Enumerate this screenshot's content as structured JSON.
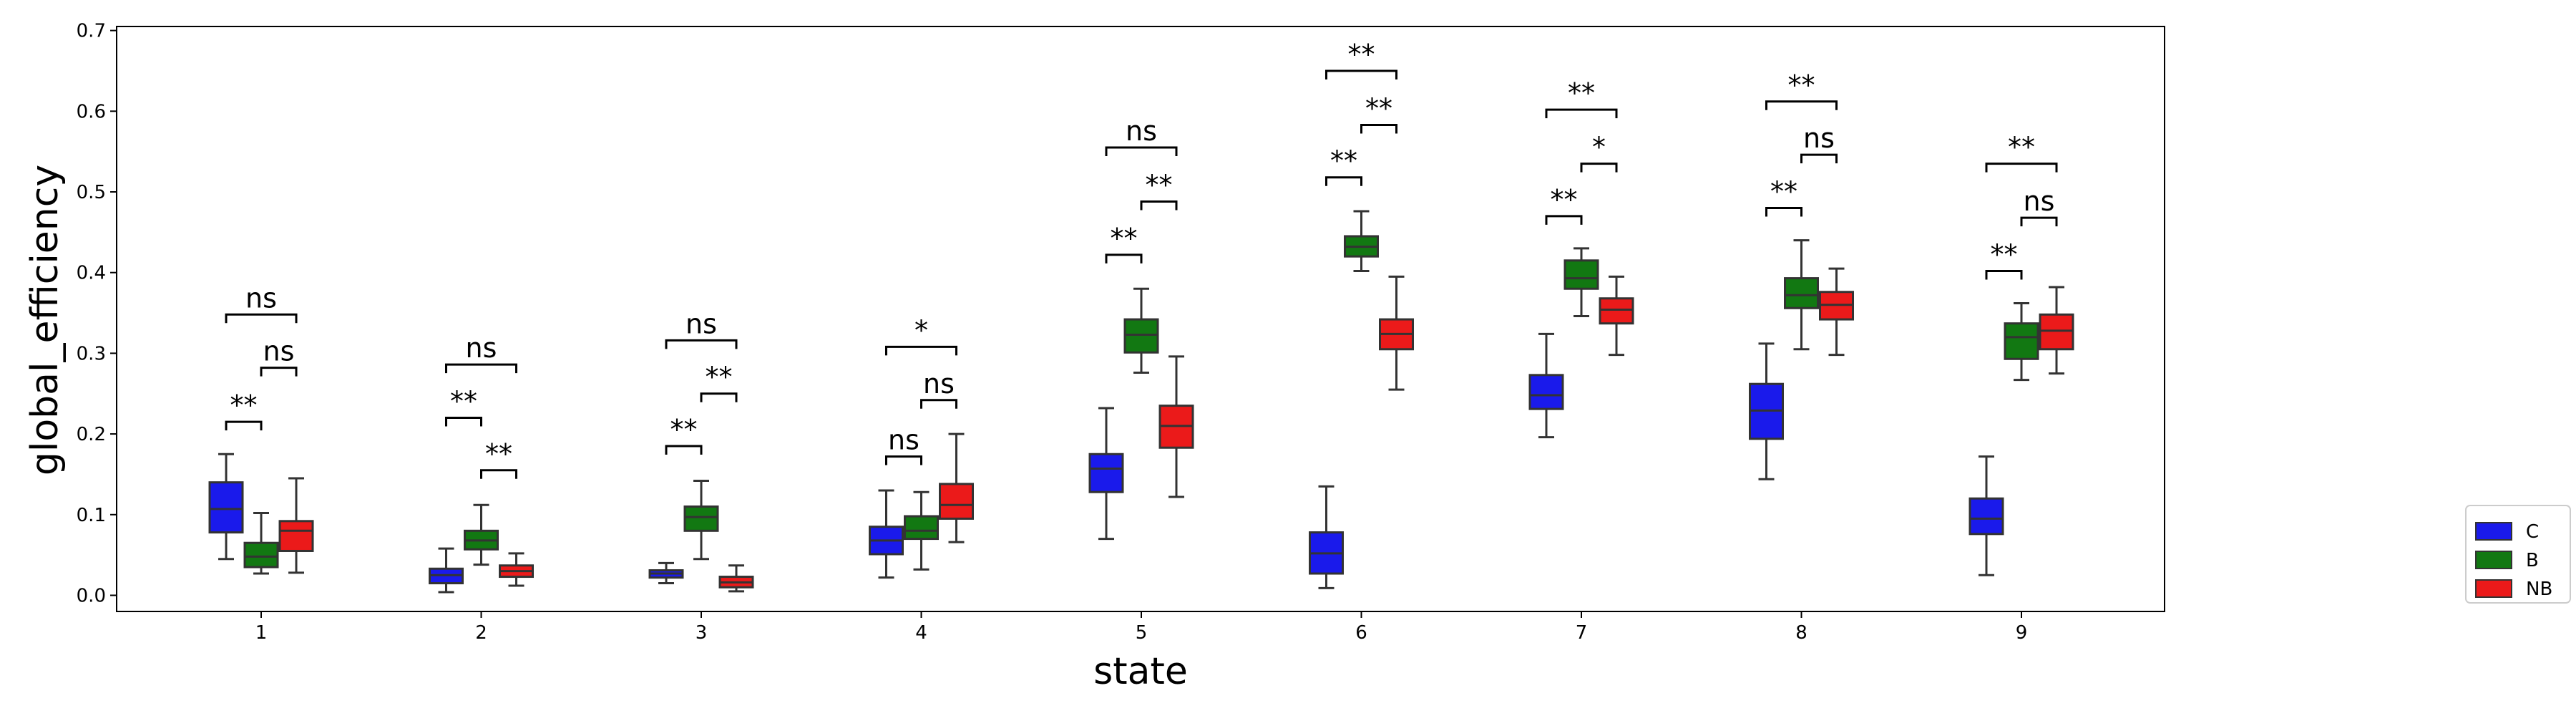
{
  "chart_data": {
    "type": "box",
    "xlabel": "state",
    "ylabel": "global_efficiency",
    "ylim": [
      -0.02,
      0.705
    ],
    "yticks": [
      "0.0",
      "0.1",
      "0.2",
      "0.3",
      "0.4",
      "0.5",
      "0.6",
      "0.7"
    ],
    "categories": [
      "1",
      "2",
      "3",
      "4",
      "5",
      "6",
      "7",
      "8",
      "9"
    ],
    "legend_position": "bottom-right, outside plot",
    "series": [
      {
        "name": "C",
        "color": "#1a1aeb",
        "boxes": [
          {
            "min": 0.045,
            "q1": 0.078,
            "median": 0.107,
            "q3": 0.14,
            "max": 0.175
          },
          {
            "min": 0.004,
            "q1": 0.015,
            "median": 0.025,
            "q3": 0.033,
            "max": 0.058
          },
          {
            "min": 0.015,
            "q1": 0.022,
            "median": 0.027,
            "q3": 0.031,
            "max": 0.04
          },
          {
            "min": 0.022,
            "q1": 0.051,
            "median": 0.068,
            "q3": 0.085,
            "max": 0.13
          },
          {
            "min": 0.07,
            "q1": 0.128,
            "median": 0.157,
            "q3": 0.175,
            "max": 0.232
          },
          {
            "min": 0.009,
            "q1": 0.027,
            "median": 0.052,
            "q3": 0.078,
            "max": 0.135
          },
          {
            "min": 0.196,
            "q1": 0.231,
            "median": 0.248,
            "q3": 0.273,
            "max": 0.324
          },
          {
            "min": 0.144,
            "q1": 0.194,
            "median": 0.229,
            "q3": 0.262,
            "max": 0.312
          },
          {
            "min": 0.025,
            "q1": 0.076,
            "median": 0.095,
            "q3": 0.12,
            "max": 0.172
          }
        ]
      },
      {
        "name": "B",
        "color": "#127812",
        "boxes": [
          {
            "min": 0.027,
            "q1": 0.035,
            "median": 0.048,
            "q3": 0.065,
            "max": 0.102
          },
          {
            "min": 0.038,
            "q1": 0.057,
            "median": 0.068,
            "q3": 0.08,
            "max": 0.112
          },
          {
            "min": 0.045,
            "q1": 0.08,
            "median": 0.097,
            "q3": 0.11,
            "max": 0.142
          },
          {
            "min": 0.032,
            "q1": 0.07,
            "median": 0.08,
            "q3": 0.098,
            "max": 0.128
          },
          {
            "min": 0.276,
            "q1": 0.301,
            "median": 0.323,
            "q3": 0.342,
            "max": 0.38
          },
          {
            "min": 0.402,
            "q1": 0.42,
            "median": 0.432,
            "q3": 0.445,
            "max": 0.476
          },
          {
            "min": 0.346,
            "q1": 0.38,
            "median": 0.393,
            "q3": 0.415,
            "max": 0.43
          },
          {
            "min": 0.305,
            "q1": 0.356,
            "median": 0.372,
            "q3": 0.393,
            "max": 0.44
          },
          {
            "min": 0.267,
            "q1": 0.293,
            "median": 0.32,
            "q3": 0.337,
            "max": 0.362
          }
        ]
      },
      {
        "name": "NB",
        "color": "#eb1a1a",
        "boxes": [
          {
            "min": 0.028,
            "q1": 0.055,
            "median": 0.08,
            "q3": 0.092,
            "max": 0.145
          },
          {
            "min": 0.012,
            "q1": 0.023,
            "median": 0.03,
            "q3": 0.037,
            "max": 0.052
          },
          {
            "min": 0.005,
            "q1": 0.01,
            "median": 0.016,
            "q3": 0.023,
            "max": 0.037
          },
          {
            "min": 0.066,
            "q1": 0.095,
            "median": 0.112,
            "q3": 0.138,
            "max": 0.2
          },
          {
            "min": 0.122,
            "q1": 0.183,
            "median": 0.21,
            "q3": 0.235,
            "max": 0.296
          },
          {
            "min": 0.255,
            "q1": 0.305,
            "median": 0.324,
            "q3": 0.342,
            "max": 0.395
          },
          {
            "min": 0.298,
            "q1": 0.337,
            "median": 0.354,
            "q3": 0.368,
            "max": 0.395
          },
          {
            "min": 0.298,
            "q1": 0.342,
            "median": 0.36,
            "q3": 0.376,
            "max": 0.405
          },
          {
            "min": 0.275,
            "q1": 0.305,
            "median": 0.328,
            "q3": 0.348,
            "max": 0.382
          }
        ]
      }
    ],
    "annotations": [
      {
        "category": "1",
        "pair": [
          "C",
          "B"
        ],
        "label": "**",
        "y": 0.215
      },
      {
        "category": "1",
        "pair": [
          "B",
          "NB"
        ],
        "label": "ns",
        "y": 0.282
      },
      {
        "category": "1",
        "pair": [
          "C",
          "NB"
        ],
        "label": "ns",
        "y": 0.348
      },
      {
        "category": "2",
        "pair": [
          "B",
          "NB"
        ],
        "label": "**",
        "y": 0.155
      },
      {
        "category": "2",
        "pair": [
          "C",
          "B"
        ],
        "label": "**",
        "y": 0.22
      },
      {
        "category": "2",
        "pair": [
          "C",
          "NB"
        ],
        "label": "ns",
        "y": 0.286
      },
      {
        "category": "3",
        "pair": [
          "C",
          "B"
        ],
        "label": "**",
        "y": 0.185
      },
      {
        "category": "3",
        "pair": [
          "B",
          "NB"
        ],
        "label": "**",
        "y": 0.25
      },
      {
        "category": "3",
        "pair": [
          "C",
          "NB"
        ],
        "label": "ns",
        "y": 0.316
      },
      {
        "category": "4",
        "pair": [
          "C",
          "B"
        ],
        "label": "ns",
        "y": 0.172
      },
      {
        "category": "4",
        "pair": [
          "B",
          "NB"
        ],
        "label": "ns",
        "y": 0.242
      },
      {
        "category": "4",
        "pair": [
          "C",
          "NB"
        ],
        "label": "*",
        "y": 0.308
      },
      {
        "category": "5",
        "pair": [
          "C",
          "B"
        ],
        "label": "**",
        "y": 0.422
      },
      {
        "category": "5",
        "pair": [
          "B",
          "NB"
        ],
        "label": "**",
        "y": 0.488
      },
      {
        "category": "5",
        "pair": [
          "C",
          "NB"
        ],
        "label": "ns",
        "y": 0.555
      },
      {
        "category": "6",
        "pair": [
          "C",
          "B"
        ],
        "label": "**",
        "y": 0.518
      },
      {
        "category": "6",
        "pair": [
          "B",
          "NB"
        ],
        "label": "**",
        "y": 0.583
      },
      {
        "category": "6",
        "pair": [
          "C",
          "NB"
        ],
        "label": "**",
        "y": 0.65
      },
      {
        "category": "7",
        "pair": [
          "C",
          "B"
        ],
        "label": "**",
        "y": 0.47
      },
      {
        "category": "7",
        "pair": [
          "B",
          "NB"
        ],
        "label": "*",
        "y": 0.535
      },
      {
        "category": "7",
        "pair": [
          "C",
          "NB"
        ],
        "label": "**",
        "y": 0.602
      },
      {
        "category": "8",
        "pair": [
          "C",
          "B"
        ],
        "label": "**",
        "y": 0.48
      },
      {
        "category": "8",
        "pair": [
          "B",
          "NB"
        ],
        "label": "ns",
        "y": 0.546
      },
      {
        "category": "8",
        "pair": [
          "C",
          "NB"
        ],
        "label": "**",
        "y": 0.612
      },
      {
        "category": "9",
        "pair": [
          "C",
          "B"
        ],
        "label": "**",
        "y": 0.402
      },
      {
        "category": "9",
        "pair": [
          "B",
          "NB"
        ],
        "label": "ns",
        "y": 0.468
      },
      {
        "category": "9",
        "pair": [
          "C",
          "NB"
        ],
        "label": "**",
        "y": 0.535
      }
    ]
  }
}
